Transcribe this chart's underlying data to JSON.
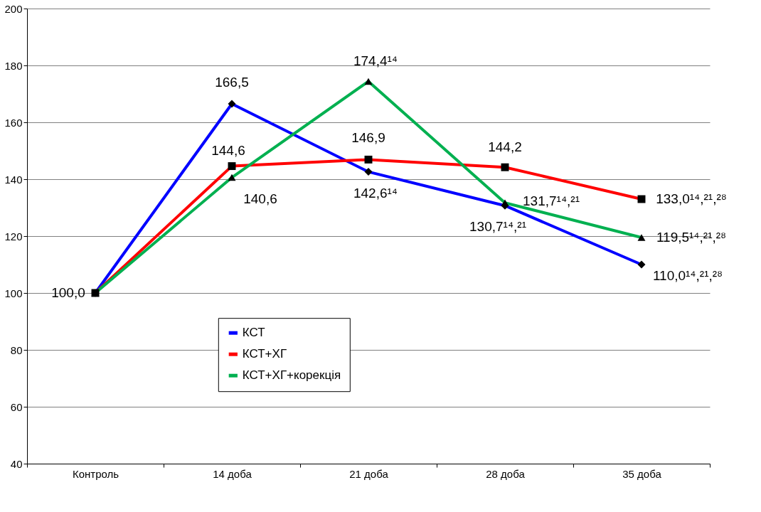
{
  "chart_data": {
    "type": "line",
    "categories": [
      "Контроль",
      "14 доба",
      "21 доба",
      "28 доба",
      "35 доба"
    ],
    "series": [
      {
        "name": "КСТ",
        "color": "#0000ff",
        "marker": "diamond",
        "values": [
          100.0,
          166.5,
          142.6,
          130.7,
          110.0
        ],
        "value_labels": [
          "100,0",
          "166,5",
          "142,6¹⁴",
          "130,7¹⁴,²¹",
          "110,0¹⁴,²¹,²⁸"
        ]
      },
      {
        "name": "КСТ+ХГ",
        "color": "#ff0000",
        "marker": "square",
        "values": [
          100.0,
          144.6,
          146.9,
          144.2,
          133.0
        ],
        "value_labels": [
          null,
          "144,6",
          "146,9",
          "144,2",
          "133,0¹⁴,²¹,²⁸"
        ]
      },
      {
        "name": "КСТ+ХГ+корекція",
        "color": "#00b050",
        "marker": "triangle",
        "values": [
          100.0,
          140.6,
          174.4,
          131.7,
          119.5
        ],
        "value_labels": [
          null,
          "140,6",
          "174,4¹⁴",
          "131,7¹⁴,²¹",
          "119,5¹⁴,²¹,²⁸"
        ]
      }
    ],
    "ylim": [
      40,
      200
    ],
    "yticks": [
      40,
      60,
      80,
      100,
      120,
      140,
      160,
      180,
      200
    ],
    "grid": "y",
    "legend": "bottom",
    "line_style": "solid"
  }
}
